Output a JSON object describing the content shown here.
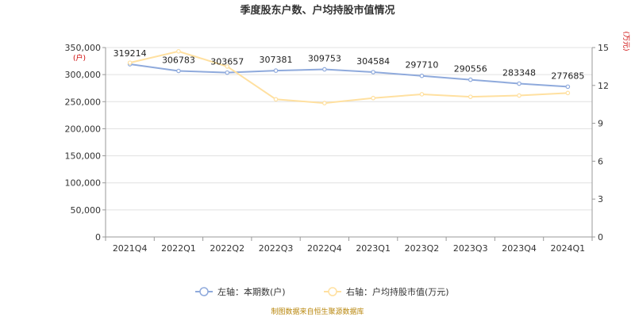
{
  "chart_data": {
    "type": "line",
    "title": "季度股东户数、户均持股市值情况",
    "categories": [
      "2021Q4",
      "2022Q1",
      "2022Q2",
      "2022Q3",
      "2022Q4",
      "2023Q1",
      "2023Q2",
      "2023Q3",
      "2023Q4",
      "2024Q1"
    ],
    "left_axis": {
      "unit": "(户)",
      "ylim": [
        0,
        350000
      ],
      "ticks": [
        "0",
        "50,000",
        "100,000",
        "150,000",
        "200,000",
        "250,000",
        "300,000",
        "350,000"
      ],
      "tick_values": [
        0,
        50000,
        100000,
        150000,
        200000,
        250000,
        300000,
        350000
      ]
    },
    "right_axis": {
      "unit": "(万元)",
      "ylim": [
        0,
        15
      ],
      "ticks": [
        "0",
        "3",
        "6",
        "9",
        "12",
        "15"
      ],
      "tick_values": [
        0,
        3,
        6,
        9,
        12,
        15
      ]
    },
    "series": [
      {
        "name": "左轴：本期数(户)",
        "axis": "left",
        "color": "#8faadc",
        "values": [
          319214,
          306783,
          303657,
          307381,
          309753,
          304584,
          297710,
          290556,
          283348,
          277685
        ],
        "labels": [
          "319214",
          "306783",
          "303657",
          "307381",
          "309753",
          "304584",
          "297710",
          "290556",
          "283348",
          "277685"
        ]
      },
      {
        "name": "右轴：户均持股市值(万元)",
        "axis": "right",
        "color": "#ffe0a0",
        "values": [
          13.8,
          14.7,
          13.5,
          10.9,
          10.6,
          11.0,
          11.3,
          11.1,
          11.2,
          11.4
        ]
      }
    ],
    "grid": true,
    "legend_position": "bottom"
  },
  "footer": {
    "source": "制图数据来自恒生聚源数据库"
  }
}
